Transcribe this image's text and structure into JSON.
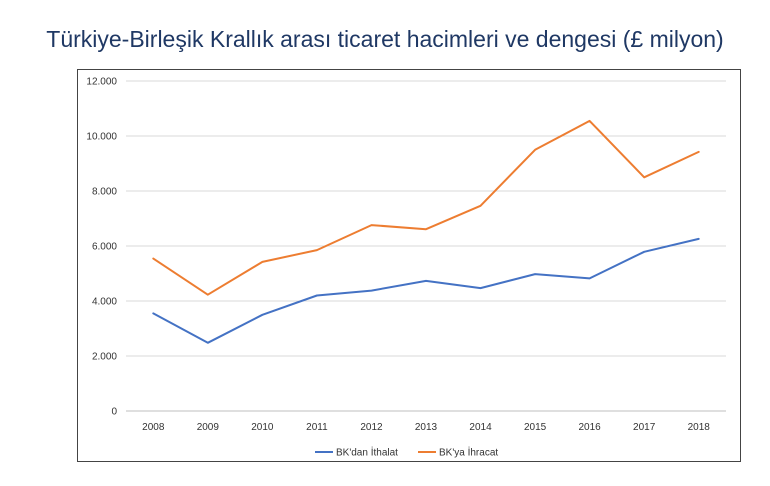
{
  "chart_data": {
    "type": "line",
    "title": "Türkiye-Birleşik Krallık arası ticaret hacimleri ve dengesi (£ milyon)",
    "categories": [
      "2008",
      "2009",
      "2010",
      "2011",
      "2012",
      "2013",
      "2014",
      "2015",
      "2016",
      "2017",
      "2018"
    ],
    "y_ticks": [
      "0",
      "2.000",
      "4.000",
      "6.000",
      "8.000",
      "10.000",
      "12.000"
    ],
    "ylim": [
      0,
      12000
    ],
    "grid": "horizontal",
    "legend_position": "bottom",
    "series": [
      {
        "name": "BK'dan İthalat",
        "color": "#4472c4",
        "values": [
          3550,
          2480,
          3500,
          4200,
          4380,
          4730,
          4470,
          4980,
          4820,
          5790,
          6260
        ]
      },
      {
        "name": "BK'ya İhracat",
        "color": "#ed7d31",
        "values": [
          5540,
          4230,
          5420,
          5850,
          6760,
          6610,
          7460,
          9500,
          10550,
          8500,
          9420
        ]
      }
    ]
  }
}
